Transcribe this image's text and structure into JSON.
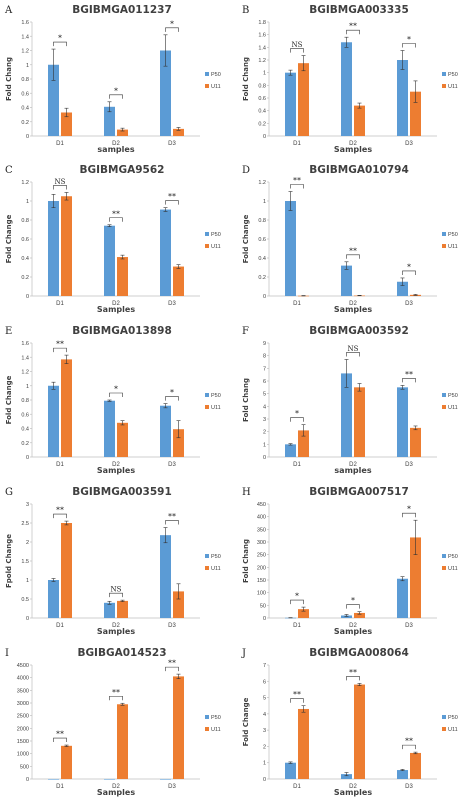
{
  "colors": {
    "P50": "#5B9BD5",
    "U11": "#ED7D31"
  },
  "chart_data": [
    {
      "type": "bar",
      "letter": "A",
      "title": "BGIBMGA011237",
      "xlabel": "samples",
      "ylabel": "Fold Chang",
      "categories": [
        "D1",
        "D2",
        "D3"
      ],
      "ylim": [
        0,
        1.6
      ],
      "yticks": [
        0,
        0.2,
        0.4,
        0.6,
        0.8,
        1,
        1.2,
        1.4,
        1.6
      ],
      "series": [
        {
          "name": "P50",
          "values": [
            1.0,
            0.41,
            1.2
          ],
          "errors": [
            0.22,
            0.07,
            0.22
          ]
        },
        {
          "name": "U11",
          "values": [
            0.33,
            0.09,
            0.1
          ],
          "errors": [
            0.06,
            0.02,
            0.02
          ]
        }
      ],
      "significance": [
        "*",
        "*",
        "*"
      ]
    },
    {
      "type": "bar",
      "letter": "B",
      "title": "BGIBMGA003335",
      "xlabel": "Samples",
      "ylabel": "Fold Chang",
      "categories": [
        "D1",
        "D2",
        "D3"
      ],
      "ylim": [
        0,
        1.8
      ],
      "yticks": [
        0,
        0.2,
        0.4,
        0.6,
        0.8,
        1,
        1.2,
        1.4,
        1.6,
        1.8
      ],
      "series": [
        {
          "name": "P50",
          "values": [
            1.0,
            1.48,
            1.2
          ],
          "errors": [
            0.04,
            0.08,
            0.15
          ]
        },
        {
          "name": "U11",
          "values": [
            1.15,
            0.48,
            0.7
          ],
          "errors": [
            0.12,
            0.04,
            0.17
          ]
        }
      ],
      "significance": [
        "NS",
        "**",
        "*"
      ]
    },
    {
      "type": "bar",
      "letter": "C",
      "title": "BGIBMGA9562",
      "xlabel": "Samples",
      "ylabel": "Fold Change",
      "categories": [
        "D1",
        "D2",
        "D3"
      ],
      "ylim": [
        0,
        1.2
      ],
      "yticks": [
        0,
        0.2,
        0.4,
        0.6,
        0.8,
        1,
        1.2
      ],
      "series": [
        {
          "name": "P50",
          "values": [
            1.0,
            0.74,
            0.91
          ],
          "errors": [
            0.07,
            0.01,
            0.02
          ]
        },
        {
          "name": "U11",
          "values": [
            1.05,
            0.41,
            0.31
          ],
          "errors": [
            0.04,
            0.02,
            0.02
          ]
        }
      ],
      "significance": [
        "NS",
        "**",
        "**"
      ]
    },
    {
      "type": "bar",
      "letter": "D",
      "title": "BGIBMGA010794",
      "xlabel": "Samples",
      "ylabel": "Fold Change",
      "categories": [
        "D1",
        "D2",
        "D3"
      ],
      "ylim": [
        0,
        1.2
      ],
      "yticks": [
        0,
        0.2,
        0.4,
        0.6,
        0.8,
        1,
        1.2
      ],
      "series": [
        {
          "name": "P50",
          "values": [
            1.0,
            0.32,
            0.15
          ],
          "errors": [
            0.1,
            0.04,
            0.04
          ]
        },
        {
          "name": "U11",
          "values": [
            0.003,
            0.005,
            0.012
          ],
          "errors": [
            0.002,
            0.002,
            0.005
          ]
        }
      ],
      "significance": [
        "**",
        "**",
        "*"
      ]
    },
    {
      "type": "bar",
      "letter": "E",
      "title": "BGIBMGA013898",
      "xlabel": "Samples",
      "ylabel": "Fold Change",
      "categories": [
        "D1",
        "D2",
        "D3"
      ],
      "ylim": [
        0,
        1.6
      ],
      "yticks": [
        0,
        0.2,
        0.4,
        0.6,
        0.8,
        1,
        1.2,
        1.4,
        1.6
      ],
      "series": [
        {
          "name": "P50",
          "values": [
            1.0,
            0.79,
            0.72
          ],
          "errors": [
            0.05,
            0.01,
            0.03
          ]
        },
        {
          "name": "U11",
          "values": [
            1.37,
            0.48,
            0.39
          ],
          "errors": [
            0.06,
            0.03,
            0.12
          ]
        }
      ],
      "significance": [
        "**",
        "*",
        "*"
      ]
    },
    {
      "type": "bar",
      "letter": "F",
      "title": "BGIBMGA003592",
      "xlabel": "samples",
      "ylabel": "Fold Chang",
      "categories": [
        "D1",
        "D2",
        "D3"
      ],
      "ylim": [
        0,
        9
      ],
      "yticks": [
        0,
        1,
        2,
        3,
        4,
        5,
        6,
        7,
        8,
        9
      ],
      "series": [
        {
          "name": "P50",
          "values": [
            1.0,
            6.6,
            5.5
          ],
          "errors": [
            0.06,
            1.1,
            0.15
          ]
        },
        {
          "name": "U11",
          "values": [
            2.1,
            5.5,
            2.3
          ],
          "errors": [
            0.45,
            0.3,
            0.15
          ]
        }
      ],
      "significance": [
        "*",
        "NS",
        "**"
      ]
    },
    {
      "type": "bar",
      "letter": "G",
      "title": "BGIBMGA003591",
      "xlabel": "Samples",
      "ylabel": "Fpold Change",
      "categories": [
        "D1",
        "D2",
        "D3"
      ],
      "ylim": [
        0,
        3
      ],
      "yticks": [
        0,
        0.5,
        1,
        1.5,
        2,
        2.5,
        3
      ],
      "series": [
        {
          "name": "P50",
          "values": [
            1.0,
            0.4,
            2.18
          ],
          "errors": [
            0.04,
            0.04,
            0.2
          ]
        },
        {
          "name": "U11",
          "values": [
            2.5,
            0.45,
            0.7
          ],
          "errors": [
            0.05,
            0.02,
            0.2
          ]
        }
      ],
      "significance": [
        "**",
        "NS",
        "**"
      ]
    },
    {
      "type": "bar",
      "letter": "H",
      "title": "BGIBMGA007517",
      "xlabel": "Samples",
      "ylabel": "Fold Chang",
      "categories": [
        "D1",
        "D2",
        "D3"
      ],
      "ylim": [
        0,
        450
      ],
      "yticks": [
        0,
        50,
        100,
        150,
        200,
        250,
        300,
        350,
        400,
        450
      ],
      "series": [
        {
          "name": "P50",
          "values": [
            1,
            10,
            155
          ],
          "errors": [
            0.5,
            4,
            8
          ]
        },
        {
          "name": "U11",
          "values": [
            35,
            20,
            318
          ],
          "errors": [
            8,
            5,
            68
          ]
        }
      ],
      "significance": [
        "*",
        "*",
        "*"
      ]
    },
    {
      "type": "bar",
      "letter": "I",
      "title": "BGIBGA014523",
      "xlabel": "Samples",
      "ylabel": "",
      "categories": [
        "D1",
        "D2",
        "D3"
      ],
      "ylim": [
        0,
        4500
      ],
      "yticks": [
        0,
        500,
        1000,
        1500,
        2000,
        2500,
        3000,
        3500,
        4000,
        4500
      ],
      "series": [
        {
          "name": "P50",
          "values": [
            1,
            1,
            1
          ],
          "errors": [
            0,
            0,
            0
          ]
        },
        {
          "name": "U11",
          "values": [
            1310,
            2950,
            4050
          ],
          "errors": [
            30,
            40,
            90
          ]
        }
      ],
      "significance": [
        "**",
        "**",
        "**"
      ]
    },
    {
      "type": "bar",
      "letter": "J",
      "title": "BGIBMGA008064",
      "xlabel": "Samples",
      "ylabel": "Fold Change",
      "categories": [
        "D1",
        "D2",
        "D3"
      ],
      "ylim": [
        0,
        7
      ],
      "yticks": [
        0,
        1,
        2,
        3,
        4,
        5,
        6,
        7
      ],
      "series": [
        {
          "name": "P50",
          "values": [
            1.0,
            0.3,
            0.55
          ],
          "errors": [
            0.05,
            0.1,
            0.04
          ]
        },
        {
          "name": "U11",
          "values": [
            4.3,
            5.8,
            1.6
          ],
          "errors": [
            0.2,
            0.07,
            0.05
          ]
        }
      ],
      "significance": [
        "**",
        "**",
        "**"
      ]
    }
  ]
}
